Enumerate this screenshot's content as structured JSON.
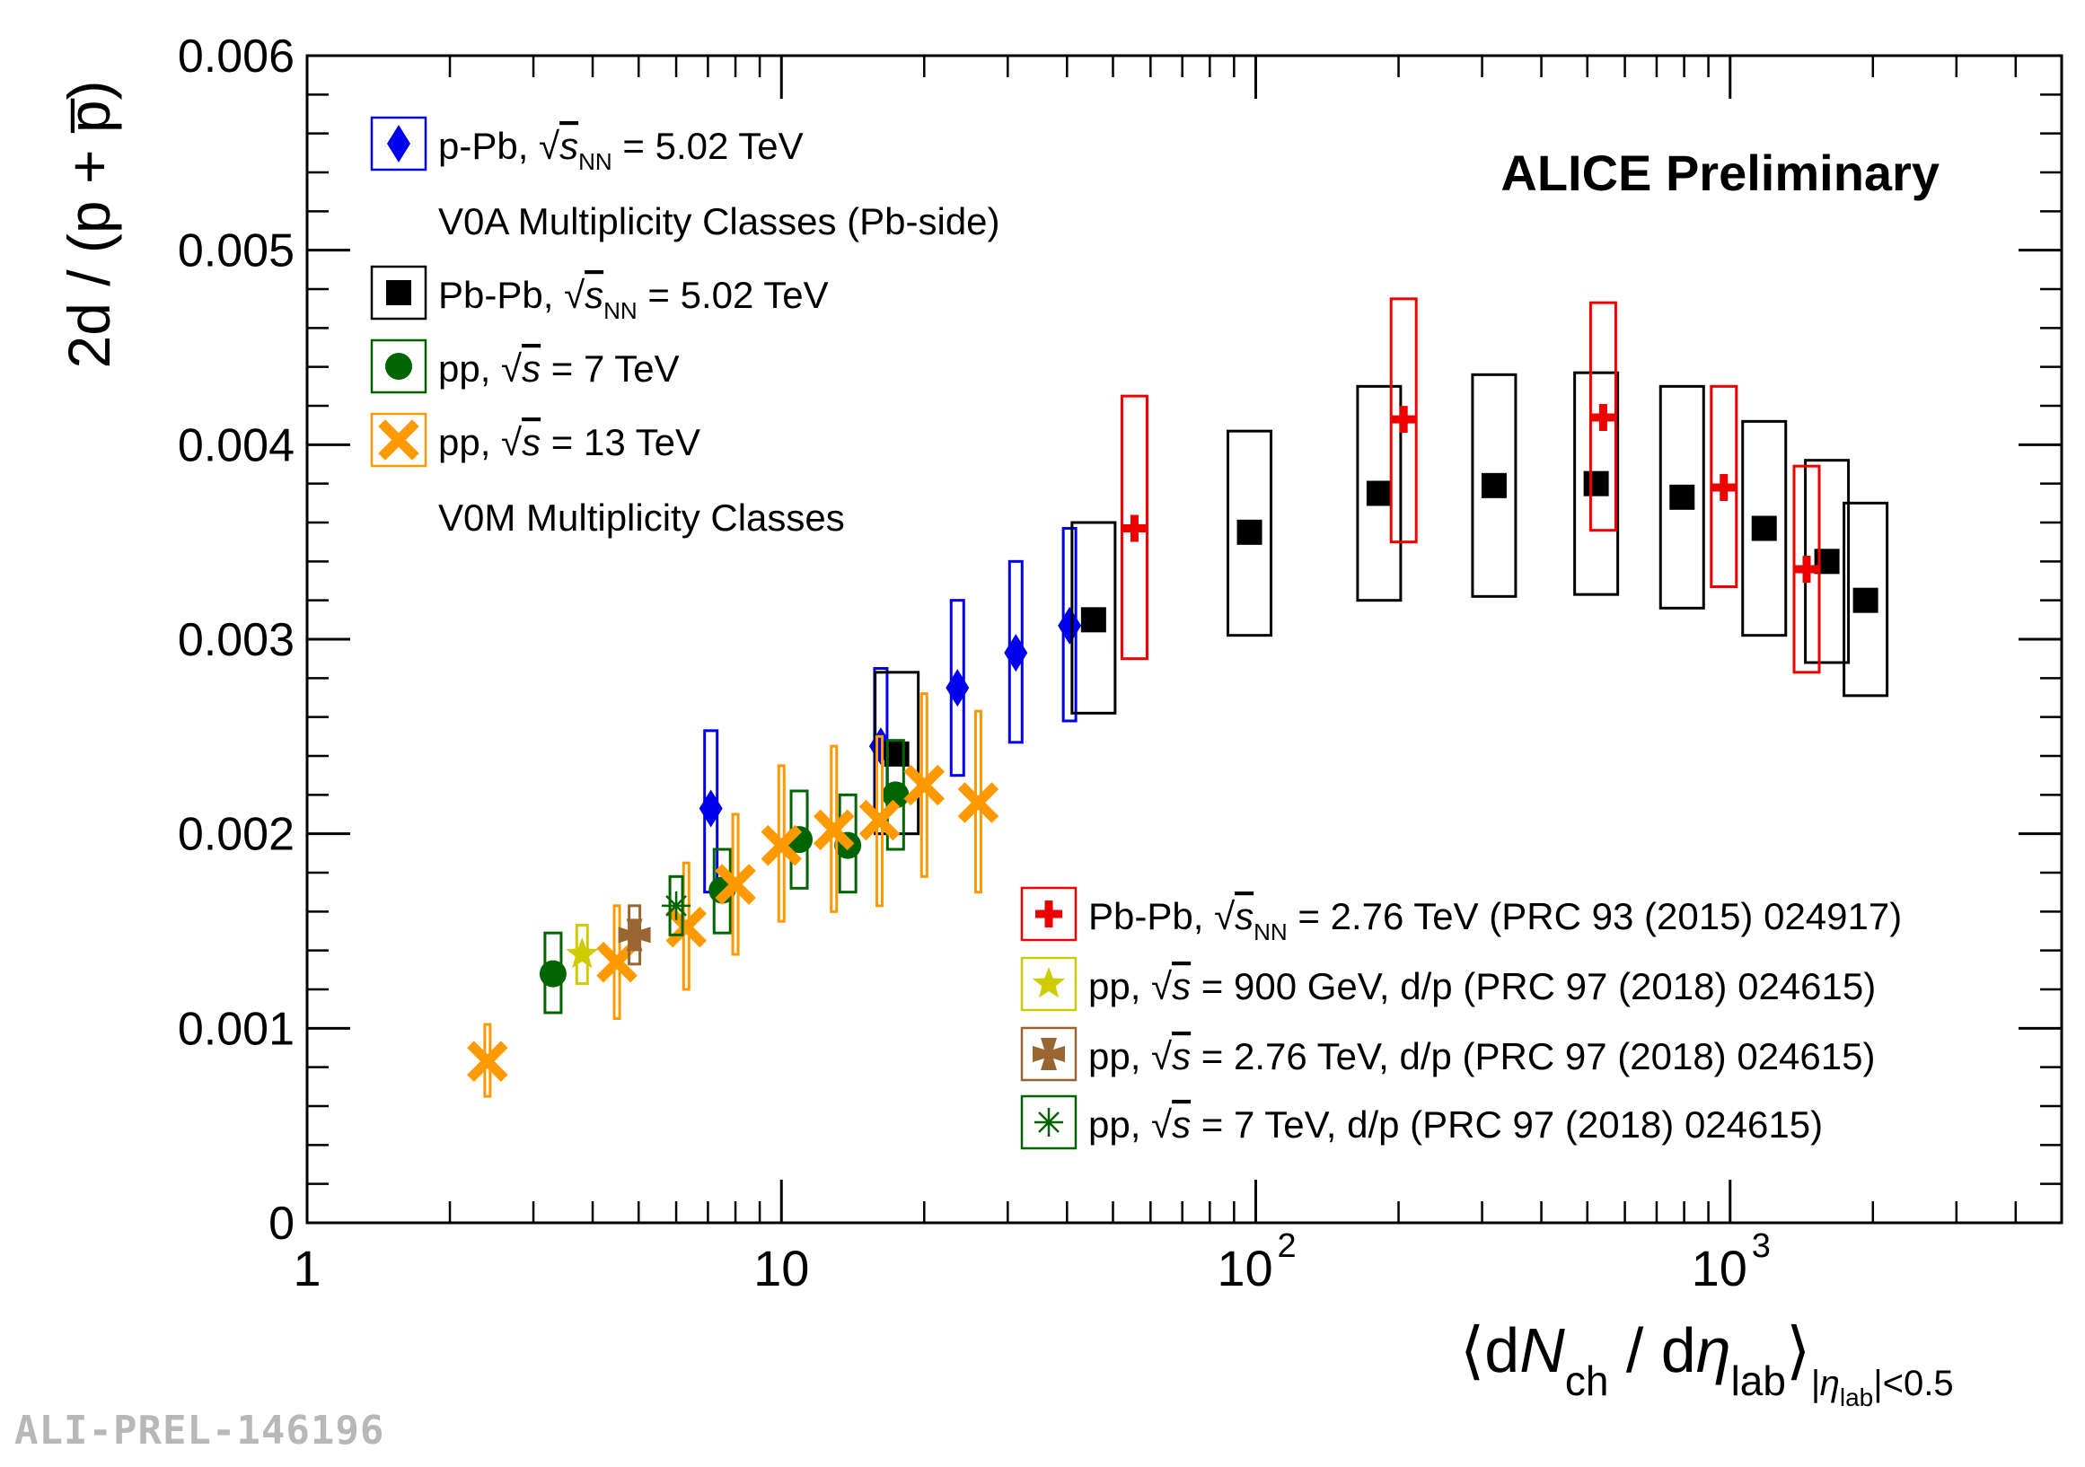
{
  "chart_data": {
    "type": "scatter",
    "title": "ALICE Preliminary",
    "ylabel": "2d / (p + p̅)",
    "xlabel": "⟨dN_ch / dη_lab⟩_{|η_lab|<0.5}",
    "xscale": "log",
    "xlim": [
      1,
      5000
    ],
    "ylim": [
      0,
      0.006
    ],
    "grid": false,
    "y_ticks": [
      "0",
      "0.001",
      "0.002",
      "0.003",
      "0.004",
      "0.005",
      "0.006"
    ],
    "x_ticks": [
      {
        "base": "1",
        "exp": ""
      },
      {
        "base": "10",
        "exp": ""
      },
      {
        "base": "10",
        "exp": "2"
      },
      {
        "base": "10",
        "exp": "3"
      }
    ],
    "series": [
      {
        "name": "p-Pb 5.02 TeV",
        "marker": "diamond",
        "color": "#0000ee",
        "points": [
          [
            7.1,
            0.00213,
            0.0017,
            0.00253
          ],
          [
            16.2,
            0.00245,
            0.00205,
            0.00285
          ],
          [
            23.5,
            0.00275,
            0.0023,
            0.0032
          ],
          [
            31.2,
            0.00293,
            0.00247,
            0.0034
          ],
          [
            40.5,
            0.00307,
            0.00258,
            0.00357
          ]
        ]
      },
      {
        "name": "Pb-Pb 5.02 TeV",
        "marker": "square",
        "color": "#000000",
        "points": [
          [
            17.5,
            0.00241,
            0.002,
            0.00283
          ],
          [
            45.5,
            0.0031,
            0.00262,
            0.0036
          ],
          [
            97,
            0.00355,
            0.00302,
            0.00407
          ],
          [
            182,
            0.00375,
            0.0032,
            0.0043
          ],
          [
            318,
            0.00379,
            0.00322,
            0.00436
          ],
          [
            522,
            0.0038,
            0.00323,
            0.00437
          ],
          [
            792,
            0.00373,
            0.00316,
            0.0043
          ],
          [
            1180,
            0.00357,
            0.00302,
            0.00412
          ],
          [
            1600,
            0.0034,
            0.00288,
            0.00392
          ],
          [
            1930,
            0.0032,
            0.00271,
            0.0037
          ]
        ]
      },
      {
        "name": "pp 7 TeV",
        "marker": "circle",
        "color": "#006400",
        "points": [
          [
            3.3,
            0.00128,
            0.00108,
            0.00149
          ],
          [
            7.5,
            0.00171,
            0.00149,
            0.00192
          ],
          [
            10.9,
            0.00197,
            0.00172,
            0.00222
          ],
          [
            13.8,
            0.00194,
            0.0017,
            0.0022
          ],
          [
            17.4,
            0.0022,
            0.00192,
            0.00248
          ]
        ]
      },
      {
        "name": "pp 13 TeV",
        "marker": "cross",
        "color": "#ff9900",
        "points": [
          [
            2.4,
            0.00083,
            0.00065,
            0.00102
          ],
          [
            4.5,
            0.00134,
            0.00105,
            0.00163
          ],
          [
            6.3,
            0.00152,
            0.0012,
            0.00185
          ],
          [
            8.0,
            0.00174,
            0.00138,
            0.0021
          ],
          [
            10.0,
            0.00194,
            0.00155,
            0.00235
          ],
          [
            12.9,
            0.00202,
            0.0016,
            0.00245
          ],
          [
            16.1,
            0.00207,
            0.00163,
            0.0025
          ],
          [
            20.0,
            0.00225,
            0.00178,
            0.00272
          ],
          [
            26.0,
            0.00216,
            0.0017,
            0.00263
          ]
        ]
      },
      {
        "name": "Pb-Pb 2.76 TeV",
        "marker": "plus",
        "color": "#ee0000",
        "points": [
          [
            55.5,
            0.00357,
            0.0029,
            0.00425
          ],
          [
            205,
            0.00413,
            0.0035,
            0.00475
          ],
          [
            540,
            0.00414,
            0.00356,
            0.00473
          ],
          [
            970,
            0.00378,
            0.00327,
            0.0043
          ],
          [
            1450,
            0.00336,
            0.00283,
            0.00389
          ]
        ]
      },
      {
        "name": "pp 900 GeV d/p",
        "marker": "star",
        "color": "#cccc00",
        "points": [
          [
            3.8,
            0.00138,
            0.00123,
            0.00153
          ]
        ]
      },
      {
        "name": "pp 2.76 TeV d/p",
        "marker": "fatcross",
        "color": "#996633",
        "points": [
          [
            4.9,
            0.00148,
            0.00133,
            0.00163
          ]
        ]
      },
      {
        "name": "pp 7 TeV d/p",
        "marker": "asterisk",
        "color": "#006400",
        "points": [
          [
            6.0,
            0.00163,
            0.00148,
            0.00178
          ]
        ]
      }
    ],
    "legend": {
      "top_left": [
        {
          "series": 0,
          "label": "p-Pb, ",
          "sqrt": "s",
          "sub": "NN",
          "tail": " = 5.02 TeV"
        },
        {
          "note": "V0A Multiplicity Classes (Pb-side)"
        },
        {
          "series": 1,
          "label": "Pb-Pb, ",
          "sqrt": "s",
          "sub": "NN",
          "tail": " = 5.02 TeV"
        },
        {
          "series": 2,
          "label": "pp, ",
          "sqrt": "s",
          "sub": "",
          "tail": " = 7 TeV"
        },
        {
          "series": 3,
          "label": "pp, ",
          "sqrt": "s",
          "sub": "",
          "tail": " = 13 TeV"
        },
        {
          "note": "V0M Multiplicity Classes"
        }
      ],
      "bottom_right": [
        {
          "series": 4,
          "label": "Pb-Pb, ",
          "sqrt": "s",
          "sub": "NN",
          "tail": " = 2.76 TeV (PRC 93 (2015) 024917)"
        },
        {
          "series": 5,
          "label": "pp, ",
          "sqrt": "s",
          "sub": "",
          "tail": " = 900 GeV, d/p (PRC 97 (2018) 024615)"
        },
        {
          "series": 6,
          "label": "pp, ",
          "sqrt": "s",
          "sub": "",
          "tail": " = 2.76 TeV, d/p (PRC 97 (2018) 024615)"
        },
        {
          "series": 7,
          "label": "pp, ",
          "sqrt": "s",
          "sub": "",
          "tail": " = 7 TeV, d/p (PRC 97 (2018) 024615)"
        }
      ]
    }
  },
  "watermark": "ALI-PREL-146196"
}
